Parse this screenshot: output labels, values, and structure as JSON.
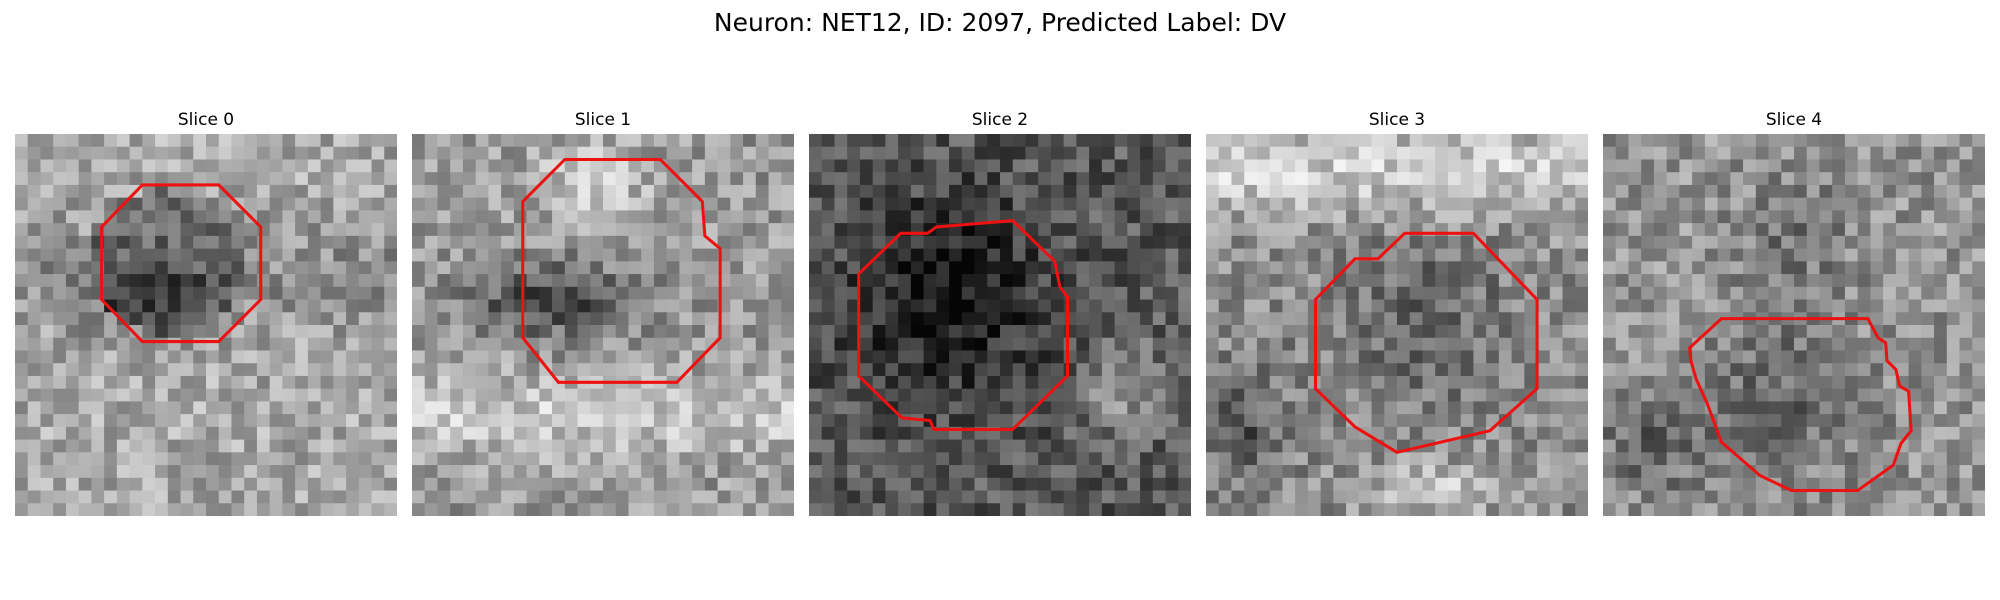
{
  "figure": {
    "title": "Neuron: NET12, ID: 2097, Predicted Label: DV",
    "contour_color": "#ee1111",
    "colormap": "grayscale"
  },
  "slices": [
    {
      "title": "Slice 0"
    },
    {
      "title": "Slice 1"
    },
    {
      "title": "Slice 2"
    },
    {
      "title": "Slice 3"
    },
    {
      "title": "Slice 4"
    }
  ]
}
